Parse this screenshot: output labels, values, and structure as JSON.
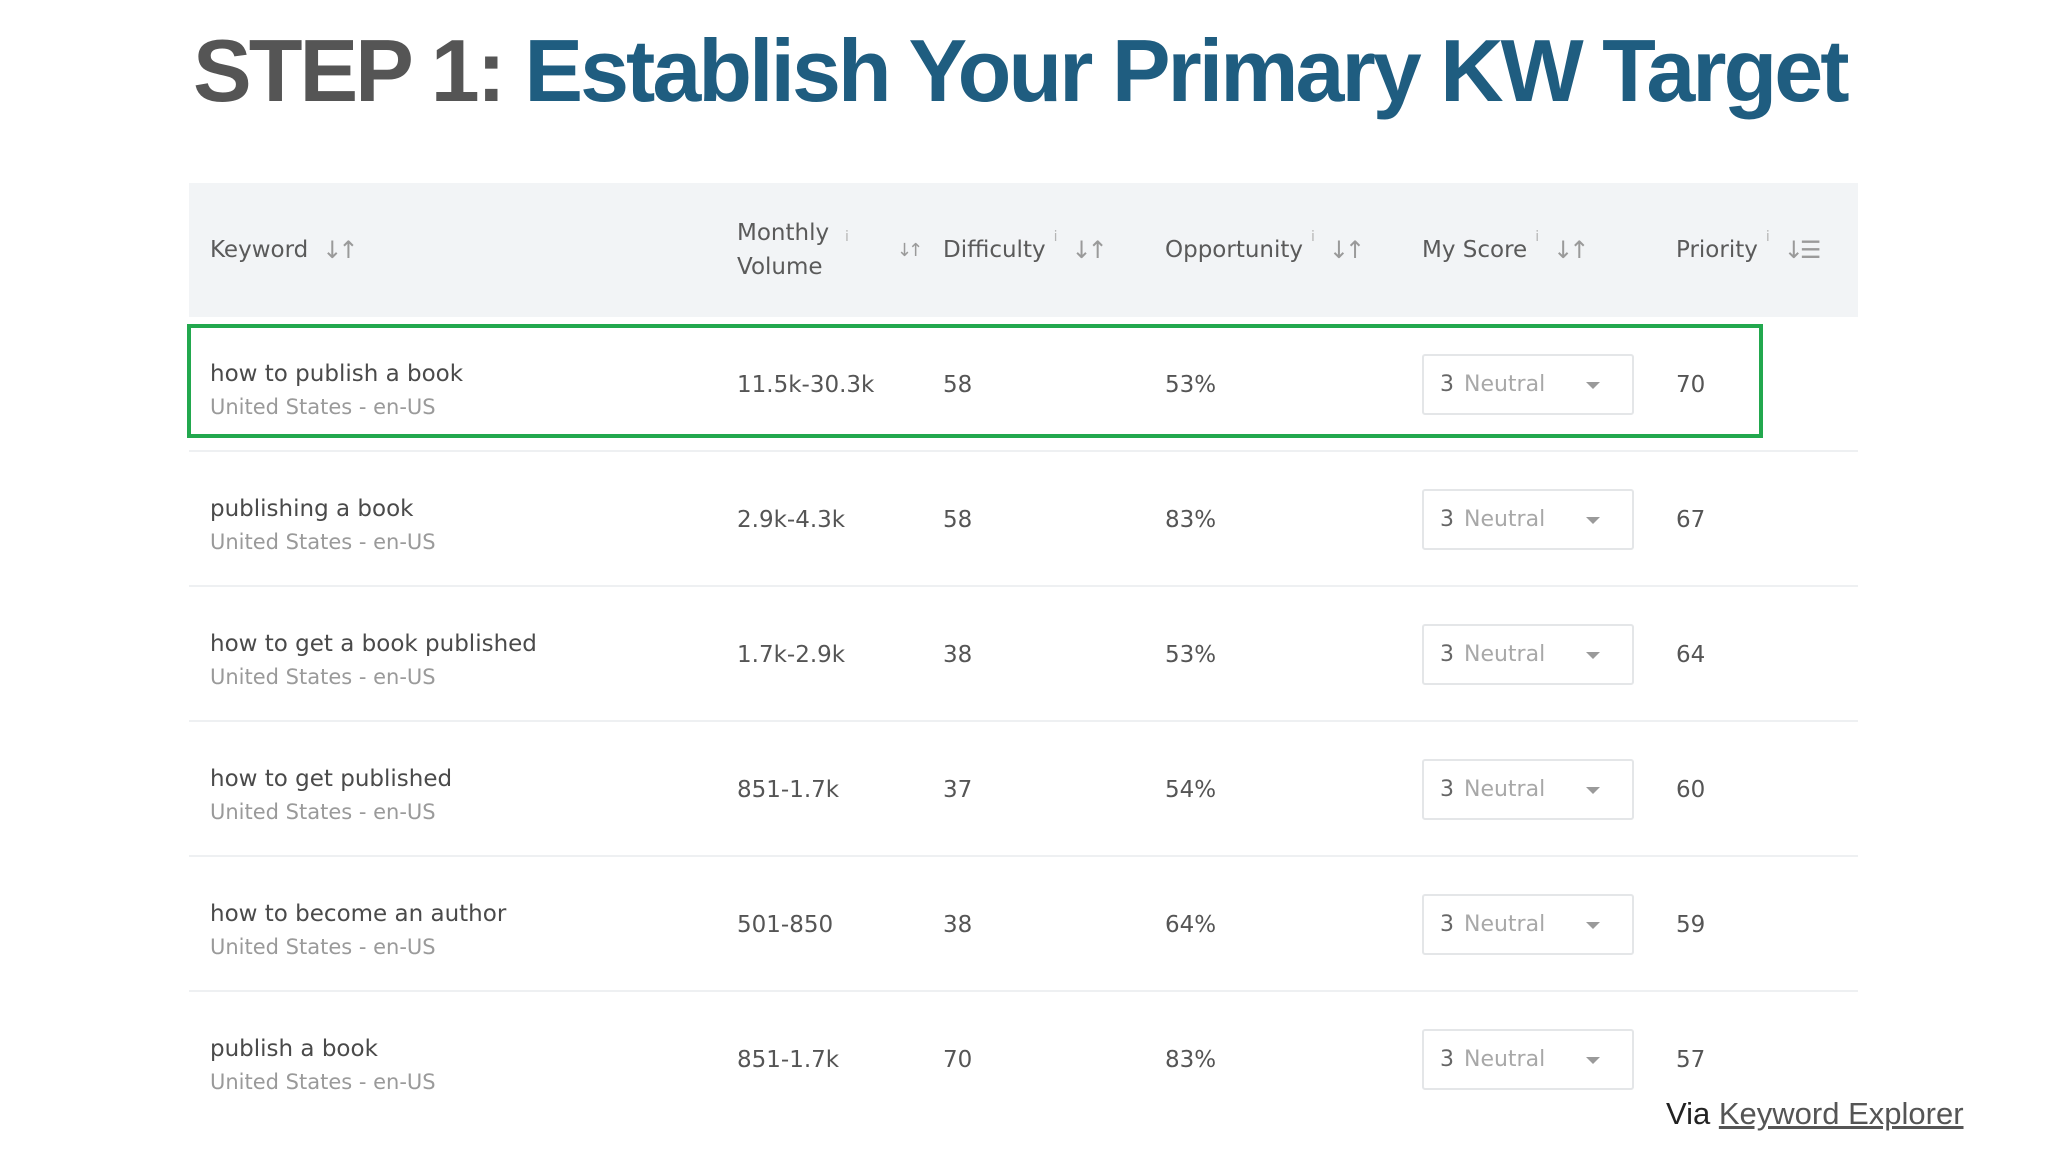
{
  "slide": {
    "title_prefix": "STEP 1: ",
    "title_main": "Establish Your Primary KW Target",
    "via_label": "Via ",
    "via_link": "Keyword Explorer"
  },
  "colors": {
    "title_prefix": "#555555",
    "title_main": "#1f5d80",
    "highlight_border": "#22a84e",
    "header_background": "#f2f4f6"
  },
  "table": {
    "headers": {
      "keyword": "Keyword",
      "volume": "Monthly Volume",
      "difficulty": "Difficulty",
      "opportunity": "Opportunity",
      "my_score": "My Score",
      "priority": "Priority"
    },
    "info_glyph": "i",
    "rows": [
      {
        "keyword": "how to publish a book",
        "locale": "United States - en-US",
        "volume": "11.5k-30.3k",
        "difficulty": "58",
        "opportunity": "53%",
        "score_num": "3",
        "score_label": "Neutral",
        "priority": "70"
      },
      {
        "keyword": "publishing a book",
        "locale": "United States - en-US",
        "volume": "2.9k-4.3k",
        "difficulty": "58",
        "opportunity": "83%",
        "score_num": "3",
        "score_label": "Neutral",
        "priority": "67"
      },
      {
        "keyword": "how to get a book published",
        "locale": "United States - en-US",
        "volume": "1.7k-2.9k",
        "difficulty": "38",
        "opportunity": "53%",
        "score_num": "3",
        "score_label": "Neutral",
        "priority": "64"
      },
      {
        "keyword": "how to get published",
        "locale": "United States - en-US",
        "volume": "851-1.7k",
        "difficulty": "37",
        "opportunity": "54%",
        "score_num": "3",
        "score_label": "Neutral",
        "priority": "60"
      },
      {
        "keyword": "how to become an author",
        "locale": "United States - en-US",
        "volume": "501-850",
        "difficulty": "38",
        "opportunity": "64%",
        "score_num": "3",
        "score_label": "Neutral",
        "priority": "59"
      },
      {
        "keyword": "publish a book",
        "locale": "United States - en-US",
        "volume": "851-1.7k",
        "difficulty": "70",
        "opportunity": "83%",
        "score_num": "3",
        "score_label": "Neutral",
        "priority": "57"
      }
    ]
  }
}
